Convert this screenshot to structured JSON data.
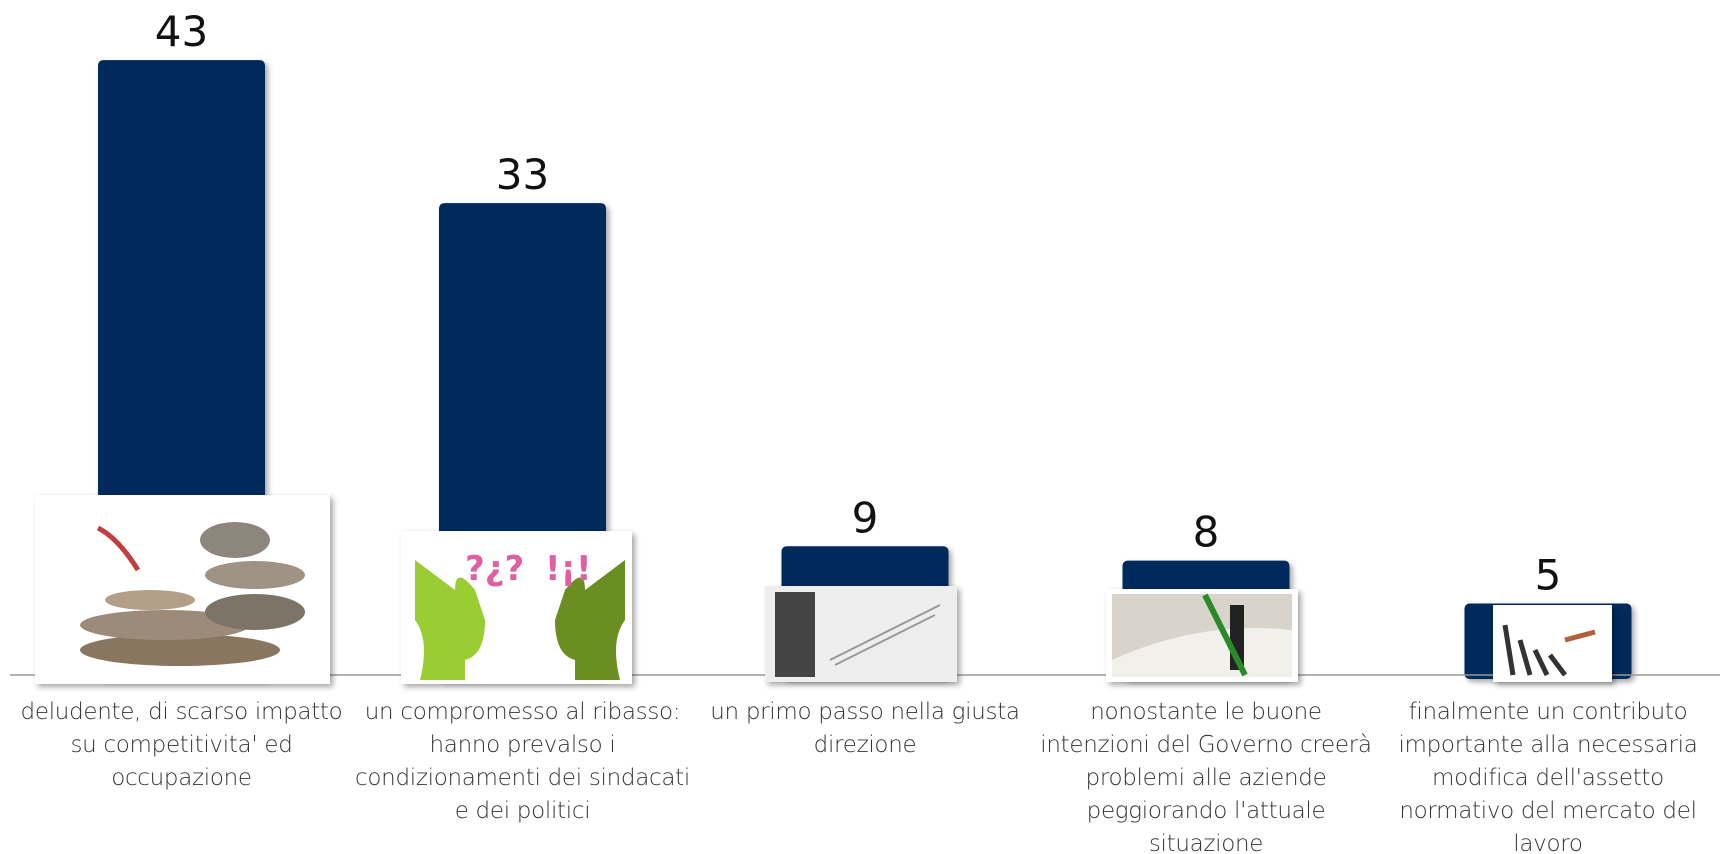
{
  "chart_data": {
    "type": "bar",
    "categories": [
      "deludente, di scarso impatto su competitivita' ed occupazione",
      "un compromesso al ribasso: hanno prevalso i condizionamenti dei sindacati e dei politici",
      "un primo passo nella giusta direzione",
      "nonostante le buone intenzioni del Governo creerà problemi alle aziende peggiorando l'attuale situazione",
      "finalmente un contributo importante alla necessaria modifica dell'assetto normativo del mercato del lavoro"
    ],
    "values": [
      43,
      33,
      9,
      8,
      5
    ],
    "color": "#002a5c",
    "ylim": [
      0,
      45
    ]
  }
}
